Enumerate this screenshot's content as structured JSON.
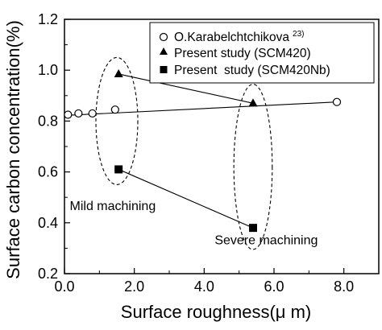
{
  "chart_data": {
    "type": "scatter",
    "xlabel": "Surface roughness(μ m)",
    "ylabel": "Surface carbon concentration(%)",
    "xlim": [
      0.0,
      9.0
    ],
    "ylim": [
      0.2,
      1.2
    ],
    "xticks": [
      0.0,
      2.0,
      4.0,
      6.0,
      8.0
    ],
    "xtick_labels": [
      "0.0",
      "2.0",
      "4.0",
      "6.0",
      "8.0"
    ],
    "yticks": [
      0.2,
      0.4,
      0.6,
      0.8,
      1.0,
      1.2
    ],
    "ytick_labels": [
      "0.2",
      "0.4",
      "0.6",
      "0.8",
      "1.0",
      "1.2"
    ],
    "grid": false,
    "legend_position": "top-right",
    "series": [
      {
        "name": "O.Karabelchtchikova",
        "name_superscript": "23)",
        "marker": "open-circle",
        "x": [
          0.1,
          0.4,
          0.8,
          1.45,
          7.8
        ],
        "y": [
          0.825,
          0.83,
          0.83,
          0.845,
          0.875
        ],
        "line_x": [
          0.0,
          7.8
        ],
        "line_y": [
          0.822,
          0.875
        ]
      },
      {
        "name": "Present study (SCM420)",
        "marker": "filled-triangle",
        "x": [
          1.55,
          5.4
        ],
        "y": [
          0.985,
          0.87
        ]
      },
      {
        "name": "Present  study (SCM420Nb)",
        "marker": "filled-square",
        "x": [
          1.55,
          5.4
        ],
        "y": [
          0.61,
          0.38
        ]
      }
    ],
    "annotations": [
      {
        "text": "Mild machining",
        "x": 0.15,
        "y": 0.45
      },
      {
        "text": "Severe machining",
        "x": 4.3,
        "y": 0.315
      }
    ],
    "groupings": [
      {
        "label": "mild",
        "cx": 1.5,
        "cy": 0.8,
        "rx": 0.6,
        "ry": 0.25
      },
      {
        "label": "severe",
        "cx": 5.4,
        "cy": 0.62,
        "rx": 0.55,
        "ry": 0.325
      }
    ],
    "colors": {
      "marker": "#000000",
      "axis": "#000000",
      "background": "#ffffff"
    }
  }
}
